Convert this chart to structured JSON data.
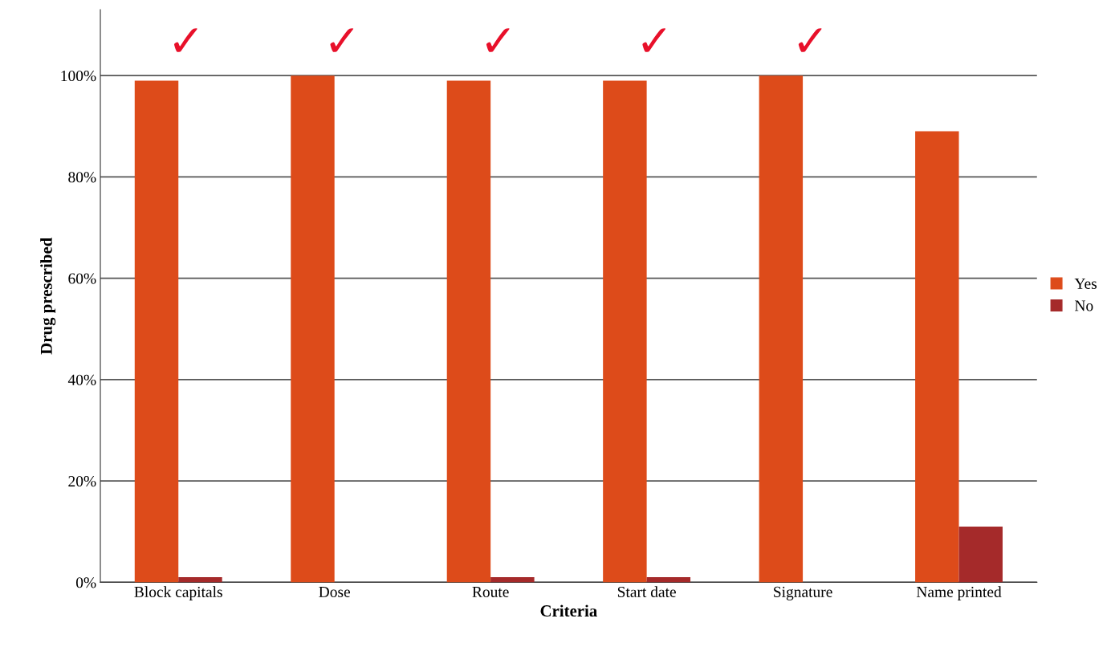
{
  "chart_data": {
    "type": "bar",
    "xlabel": "Criteria",
    "ylabel": "Drug prescribed",
    "categories": [
      "Block capitals",
      "Dose",
      "Route",
      "Start date",
      "Signature",
      "Name printed"
    ],
    "series": [
      {
        "name": "Yes",
        "color": "#dd4b1a",
        "values": [
          99,
          100,
          99,
          99,
          100,
          89
        ]
      },
      {
        "name": "No",
        "color": "#a52a2a",
        "values": [
          1,
          0,
          1,
          1,
          0,
          11
        ]
      }
    ],
    "ylim": [
      0,
      113
    ],
    "yticks": [
      {
        "value": 0,
        "label": "0%"
      },
      {
        "value": 20,
        "label": "20%"
      },
      {
        "value": 40,
        "label": "40%"
      },
      {
        "value": 60,
        "label": "60%"
      },
      {
        "value": 80,
        "label": "80%"
      },
      {
        "value": 100,
        "label": "100%"
      }
    ],
    "grid": "y",
    "legend": "right",
    "annotations": [
      "✓",
      "✓",
      "✓",
      "✓",
      "✓"
    ]
  }
}
